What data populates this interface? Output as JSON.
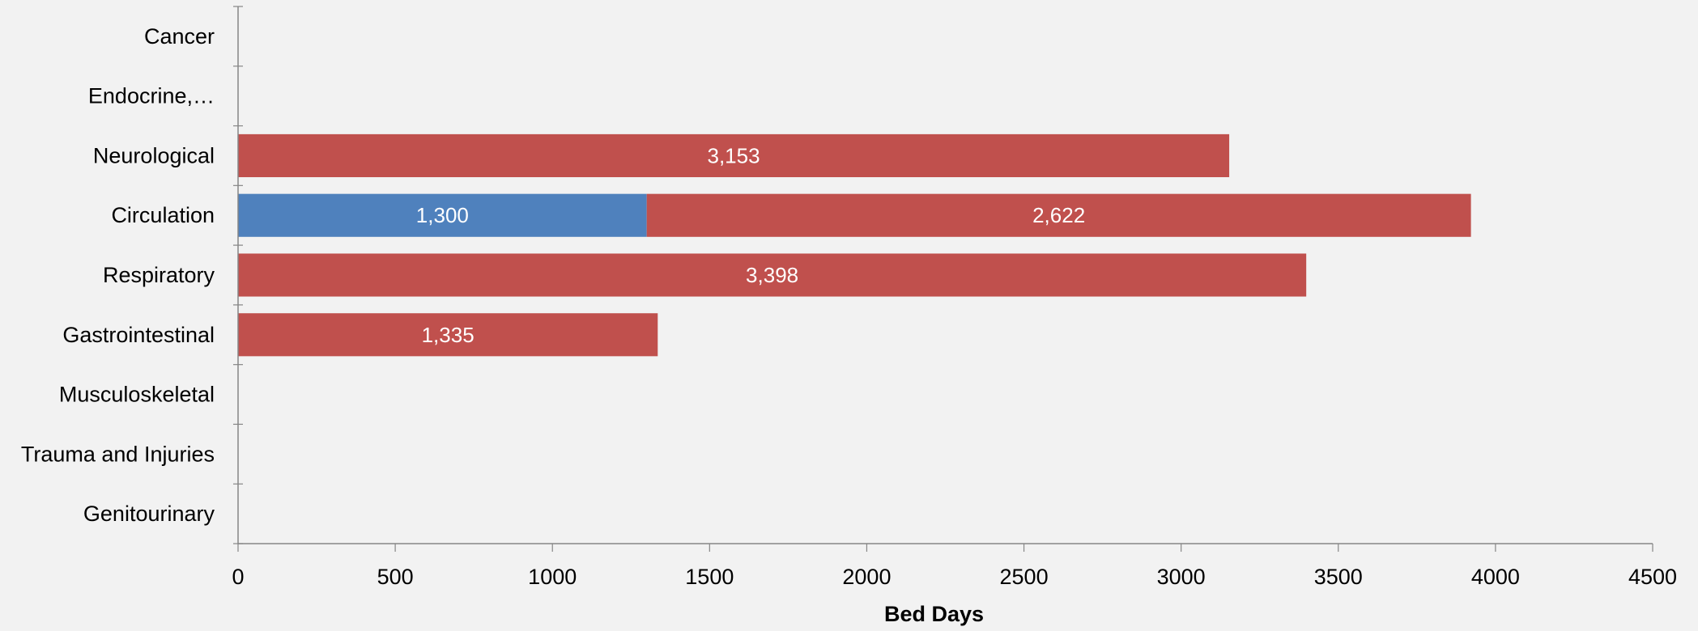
{
  "chart_data": {
    "type": "bar",
    "orientation": "horizontal",
    "stacked": true,
    "categories": [
      "Cancer",
      "Endocrine,…",
      "Neurological",
      "Circulation",
      "Respiratory",
      "Gastrointestinal",
      "Musculoskeletal",
      "Trauma and Injuries",
      "Genitourinary"
    ],
    "series": [
      {
        "color": "#4f81bd",
        "values": [
          0,
          0,
          0,
          1300,
          0,
          0,
          0,
          0,
          0
        ],
        "labels": [
          "",
          "",
          "",
          "1,300",
          "",
          "",
          "",
          "",
          ""
        ]
      },
      {
        "color": "#c0504d",
        "values": [
          0,
          0,
          3153,
          2622,
          3398,
          1335,
          0,
          0,
          0
        ],
        "labels": [
          "",
          "",
          "3,153",
          "2,622",
          "3,398",
          "1,335",
          "",
          "",
          ""
        ]
      }
    ],
    "xlabel": "Bed Days",
    "ylabel": "",
    "xlim": [
      0,
      4500
    ],
    "xticks": [
      0,
      500,
      1000,
      1500,
      2000,
      2500,
      3000,
      3500,
      4000,
      4500
    ],
    "xtick_labels": [
      "0",
      "500",
      "1000",
      "1500",
      "2000",
      "2500",
      "3000",
      "3500",
      "4000",
      "4500"
    ],
    "grid": false,
    "legend": "none"
  }
}
